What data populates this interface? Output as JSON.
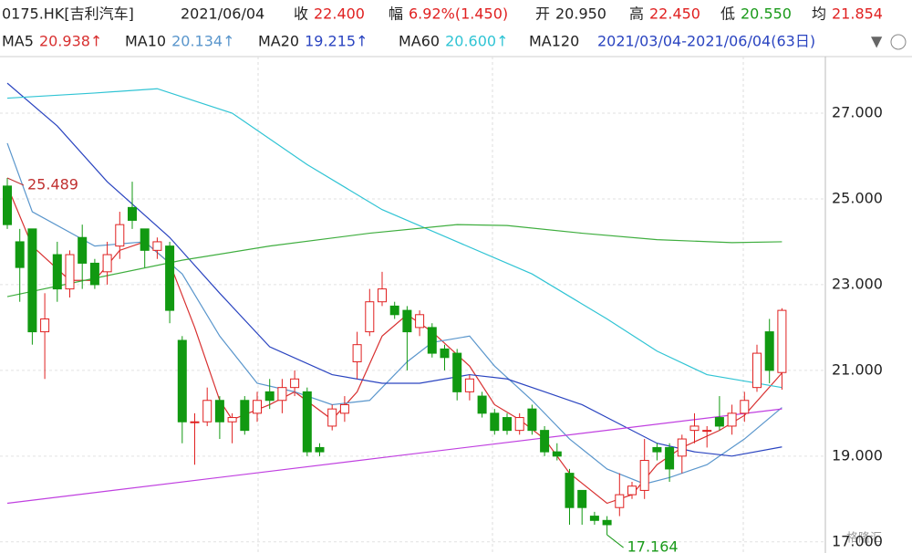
{
  "header": {
    "symbol": "0175.HK[吉利汽车]",
    "date": "2021/06/04",
    "fields": [
      {
        "label": "收",
        "value": "22.400",
        "color": "#e02020"
      },
      {
        "label": "幅",
        "value": "6.92%(1.450)",
        "color": "#e02020"
      },
      {
        "label": "开",
        "value": "20.950",
        "color": "#222222"
      },
      {
        "label": "高",
        "value": "22.450",
        "color": "#e02020"
      },
      {
        "label": "低",
        "value": "20.550",
        "color": "#1a9a1a"
      },
      {
        "label": "均",
        "value": "21.854",
        "color": "#e02020"
      }
    ],
    "range": "2021/03/04-2021/06/04(63日)"
  },
  "watermark": "格隆汇",
  "chart_data": {
    "type": "candlestick",
    "open": [
      25.3,
      24.0,
      24.3,
      21.9,
      23.7,
      22.9,
      24.1,
      23.5,
      23.3,
      23.9,
      24.8,
      24.3,
      23.8,
      23.9,
      21.7,
      19.8,
      19.8,
      20.3,
      19.8,
      20.3,
      20.0,
      20.5,
      20.3,
      20.6,
      20.5,
      19.2,
      19.7,
      20.0,
      21.2,
      21.9,
      22.6,
      22.5,
      22.4,
      22.0,
      22.0,
      21.5,
      21.4,
      20.5,
      20.4,
      20.0,
      19.9,
      19.6,
      20.1,
      19.6,
      19.1,
      18.6,
      18.2,
      17.6,
      17.5,
      17.8,
      18.1,
      18.2,
      19.2,
      19.2,
      19.0,
      19.6,
      19.6,
      19.9,
      19.7,
      20.0,
      20.6,
      21.9,
      20.95
    ],
    "high": [
      25.489,
      24.3,
      24.3,
      22.8,
      24.0,
      23.8,
      24.4,
      23.6,
      24.0,
      24.7,
      25.4,
      24.3,
      24.1,
      24.0,
      21.8,
      20.0,
      20.6,
      20.4,
      20.0,
      20.4,
      20.5,
      20.8,
      20.8,
      21.0,
      20.6,
      19.3,
      20.2,
      20.4,
      21.9,
      22.9,
      23.3,
      22.6,
      22.5,
      22.4,
      22.1,
      21.6,
      21.5,
      20.9,
      20.5,
      20.1,
      20.0,
      20.0,
      20.2,
      19.7,
      19.3,
      18.7,
      18.2,
      17.7,
      17.6,
      18.6,
      18.4,
      19.4,
      19.3,
      19.3,
      19.5,
      20.0,
      19.7,
      20.4,
      20.2,
      20.5,
      21.6,
      22.2,
      22.45
    ],
    "low": [
      24.3,
      22.6,
      21.6,
      20.8,
      22.6,
      22.7,
      22.9,
      22.9,
      23.0,
      23.6,
      24.3,
      23.4,
      23.6,
      22.1,
      19.3,
      18.8,
      19.7,
      19.4,
      19.3,
      19.5,
      19.8,
      20.1,
      20.0,
      20.4,
      19.0,
      19.0,
      19.6,
      19.8,
      20.8,
      21.8,
      22.5,
      22.2,
      21.0,
      21.8,
      21.3,
      21.0,
      20.3,
      20.3,
      19.9,
      19.5,
      19.5,
      19.5,
      19.5,
      19.0,
      18.9,
      17.4,
      17.4,
      17.4,
      17.164,
      17.6,
      18.0,
      18.0,
      18.9,
      18.4,
      18.6,
      19.3,
      19.2,
      19.6,
      19.5,
      19.8,
      20.5,
      20.7,
      20.55
    ],
    "close": [
      24.4,
      23.4,
      21.9,
      22.2,
      22.9,
      23.7,
      23.5,
      23.0,
      23.7,
      24.4,
      24.5,
      23.8,
      24.0,
      22.4,
      19.8,
      19.8,
      20.3,
      19.8,
      19.9,
      19.6,
      20.3,
      20.3,
      20.6,
      20.8,
      19.1,
      19.1,
      20.1,
      20.2,
      21.6,
      22.6,
      22.9,
      22.3,
      21.9,
      22.3,
      21.4,
      21.3,
      20.5,
      20.8,
      20.0,
      19.6,
      19.6,
      19.9,
      19.6,
      19.1,
      19.0,
      17.8,
      17.8,
      17.5,
      17.4,
      18.1,
      18.3,
      18.9,
      19.1,
      18.7,
      19.4,
      19.7,
      19.6,
      19.7,
      20.0,
      20.3,
      21.4,
      21.0,
      22.4
    ],
    "up_color": "#e02020",
    "down_color": "#119911",
    "high_label": "25.489",
    "low_label": "17.164",
    "lines": [
      {
        "name": "MA5",
        "legend_value": "20.938↑",
        "color": "#d83030",
        "x": [
          0,
          2,
          5,
          7,
          9,
          11,
          13,
          15,
          17,
          18,
          21,
          23,
          26,
          28,
          30,
          32,
          34,
          37,
          39,
          41,
          43,
          45,
          48,
          50,
          52,
          54,
          57,
          59,
          62
        ],
        "values": [
          25.3,
          23.9,
          23.1,
          23.1,
          23.8,
          24.0,
          23.5,
          22.0,
          20.3,
          19.85,
          20.2,
          20.5,
          19.85,
          20.5,
          21.8,
          22.3,
          21.9,
          21.1,
          20.2,
          19.85,
          19.4,
          18.6,
          17.9,
          18.1,
          18.8,
          19.2,
          19.6,
          19.95,
          20.938
        ]
      },
      {
        "name": "MA10",
        "legend_value": "20.134↑",
        "color": "#5a96cc",
        "x": [
          0,
          2,
          7,
          11,
          14,
          17,
          20,
          23,
          26,
          29,
          32,
          34,
          37,
          39,
          42,
          45,
          48,
          51,
          53,
          56,
          59,
          62
        ],
        "values": [
          26.3,
          24.7,
          23.9,
          24.0,
          23.25,
          21.8,
          20.7,
          20.5,
          20.2,
          20.3,
          21.2,
          21.65,
          21.8,
          21.1,
          20.3,
          19.4,
          18.7,
          18.35,
          18.5,
          18.8,
          19.4,
          20.134
        ]
      },
      {
        "name": "MA20",
        "legend_value": "19.215↑",
        "color": "#2a44c0",
        "x": [
          0,
          4,
          8,
          13,
          17,
          21,
          26,
          30,
          33,
          37,
          40,
          43,
          46,
          49,
          52,
          55,
          58,
          62
        ],
        "values": [
          27.7,
          26.7,
          25.4,
          24.1,
          22.8,
          21.55,
          20.9,
          20.7,
          20.7,
          20.9,
          20.8,
          20.5,
          20.2,
          19.75,
          19.3,
          19.1,
          19.0,
          19.215
        ]
      },
      {
        "name": "MA60",
        "legend_value": "20.600↑",
        "color": "#30c4d4",
        "x": [
          0,
          7,
          12,
          18,
          24,
          30,
          36,
          42,
          48,
          52,
          56,
          60,
          62
        ],
        "values": [
          27.35,
          27.47,
          27.57,
          27.0,
          25.8,
          24.75,
          24.0,
          23.25,
          22.2,
          21.45,
          20.9,
          20.7,
          20.6
        ]
      },
      {
        "name": "MA120",
        "color": "#3fae3f",
        "x": [
          0,
          7,
          14,
          21,
          29,
          36,
          40,
          46,
          52,
          58,
          62
        ],
        "values": [
          22.72,
          23.15,
          23.57,
          23.9,
          24.2,
          24.4,
          24.38,
          24.2,
          24.05,
          23.98,
          24.0
        ]
      },
      {
        "color": "#c040e0",
        "x": [
          0,
          31,
          62
        ],
        "values": [
          17.9,
          19.0,
          20.1
        ]
      }
    ],
    "ylim": [
      16.74,
      28.32
    ],
    "yticks": [
      {
        "value": 17,
        "label": "17.000"
      },
      {
        "value": 19,
        "label": "19.000"
      },
      {
        "value": 21,
        "label": "21.000"
      },
      {
        "value": 23,
        "label": "23.000"
      },
      {
        "value": 25,
        "label": "25.000"
      },
      {
        "value": 27,
        "label": "27.000"
      }
    ],
    "grid": true
  }
}
